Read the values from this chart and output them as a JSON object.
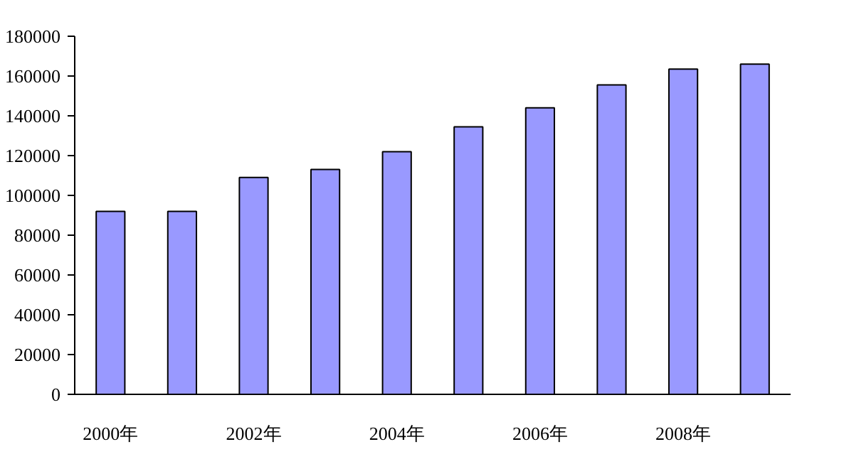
{
  "chart_data": {
    "type": "bar",
    "categories": [
      "2000年",
      null,
      "2002年",
      null,
      "2004年",
      null,
      "2006年",
      null,
      "2008年",
      null
    ],
    "values": [
      92000,
      92000,
      109000,
      113000,
      122000,
      134500,
      144000,
      155500,
      163500,
      166000
    ],
    "color": "#9999ff",
    "ylim": [
      0,
      180000
    ],
    "yticks": [
      0,
      20000,
      40000,
      60000,
      80000,
      100000,
      120000,
      140000,
      160000,
      180000
    ],
    "grid": false
  }
}
